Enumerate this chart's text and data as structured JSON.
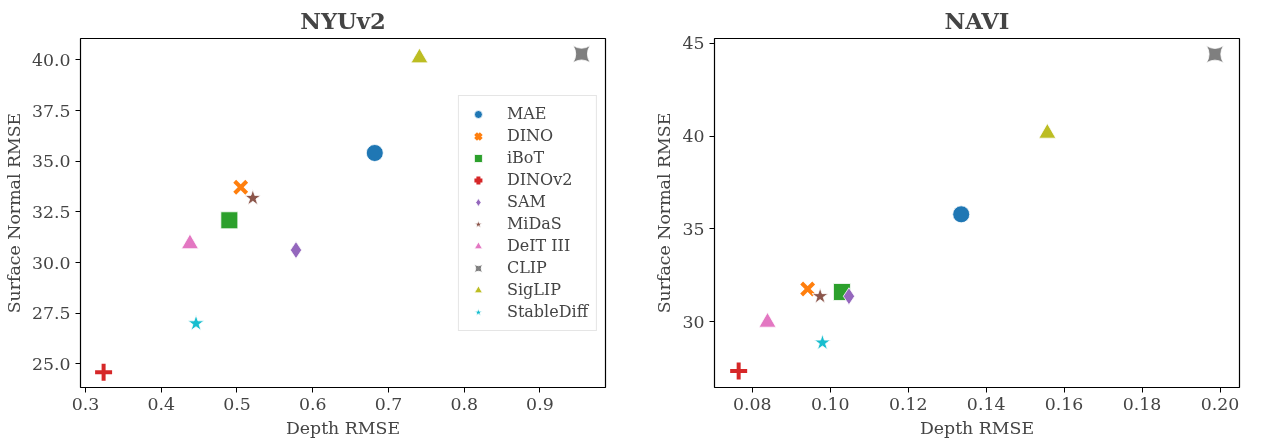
{
  "chart_data": [
    {
      "type": "scatter",
      "title": "NYUv2",
      "xlabel": "Depth RMSE",
      "ylabel": "Surface Normal RMSE",
      "xlim": [
        0.2935,
        0.9866
      ],
      "ylim": [
        23.84,
        41.06
      ],
      "xticks": [
        0.3,
        0.4,
        0.5,
        0.6,
        0.7,
        0.8,
        0.9
      ],
      "yticks": [
        {
          "value": 25,
          "label": "25.0"
        },
        27.5,
        {
          "value": 30,
          "label": "30.0"
        },
        32.5,
        {
          "value": 35,
          "label": "35.0"
        },
        37.5,
        {
          "value": 40,
          "label": "40.0"
        }
      ],
      "grid": false,
      "legend": "right",
      "series": [
        {
          "name": "MAE",
          "color": "#1f77b4",
          "marker": "circle",
          "x": [
            0.682
          ],
          "values": [
            35.41
          ]
        },
        {
          "name": "DINO",
          "color": "#ff7f0e",
          "marker": "x",
          "x": [
            0.505
          ],
          "values": [
            33.72
          ]
        },
        {
          "name": "iBoT",
          "color": "#2ca02c",
          "marker": "square",
          "x": [
            0.49
          ],
          "values": [
            32.09
          ]
        },
        {
          "name": "DINOv2",
          "color": "#d62728",
          "marker": "cross",
          "x": [
            0.324
          ],
          "values": [
            24.59
          ]
        },
        {
          "name": "SAM",
          "color": "#9467bd",
          "marker": "diamond",
          "x": [
            0.578
          ],
          "values": [
            30.62
          ]
        },
        {
          "name": "MiDaS",
          "color": "#8c564b",
          "marker": "star",
          "x": [
            0.521
          ],
          "values": [
            33.19
          ]
        },
        {
          "name": "DeIT III",
          "color": "#e377c2",
          "marker": "triangle",
          "x": [
            0.438
          ],
          "values": [
            30.93
          ]
        },
        {
          "name": "CLIP",
          "color": "#7f7f7f",
          "marker": "square_pin",
          "x": [
            0.955
          ],
          "values": [
            40.29
          ]
        },
        {
          "name": "SigLIP",
          "color": "#bcbd22",
          "marker": "triangle",
          "x": [
            0.741
          ],
          "values": [
            40.1
          ]
        },
        {
          "name": "StableDiff",
          "color": "#17becf",
          "marker": "star",
          "x": [
            0.446
          ],
          "values": [
            27.0
          ]
        }
      ]
    },
    {
      "type": "scatter",
      "title": "NAVI",
      "xlabel": "Depth RMSE",
      "ylabel": "Surface Normal RMSE",
      "xlim": [
        0.0703,
        0.205
      ],
      "ylim": [
        26.47,
        45.25
      ],
      "xticks": [
        0.08,
        {
          "value": 0.1,
          "label": "0.10"
        },
        0.12,
        0.14,
        0.16,
        0.18,
        {
          "value": 0.2,
          "label": "0.20"
        }
      ],
      "yticks": [
        30,
        35,
        40,
        45
      ],
      "grid": false,
      "series": [
        {
          "color": "#1f77b4",
          "marker": "circle",
          "x": [
            0.1336
          ],
          "values": [
            35.79
          ]
        },
        {
          "color": "#ff7f0e",
          "marker": "x",
          "x": [
            0.0942
          ],
          "values": [
            31.77
          ]
        },
        {
          "color": "#2ca02c",
          "marker": "square",
          "x": [
            0.103
          ],
          "values": [
            31.61
          ]
        },
        {
          "color": "#d62728",
          "marker": "cross",
          "x": [
            0.0765
          ],
          "values": [
            27.36
          ]
        },
        {
          "color": "#9467bd",
          "marker": "diamond",
          "x": [
            0.1048
          ],
          "values": [
            31.38
          ]
        },
        {
          "color": "#8c564b",
          "marker": "star",
          "x": [
            0.0974
          ],
          "values": [
            31.38
          ]
        },
        {
          "color": "#e377c2",
          "marker": "triangle",
          "x": [
            0.0839
          ],
          "values": [
            29.98
          ]
        },
        {
          "color": "#7f7f7f",
          "marker": "square_pin",
          "x": [
            0.1987
          ],
          "values": [
            44.4
          ]
        },
        {
          "color": "#bcbd22",
          "marker": "triangle",
          "x": [
            0.1557
          ],
          "values": [
            40.15
          ]
        },
        {
          "color": "#17becf",
          "marker": "star",
          "x": [
            0.098
          ],
          "values": [
            28.88
          ]
        }
      ]
    }
  ]
}
